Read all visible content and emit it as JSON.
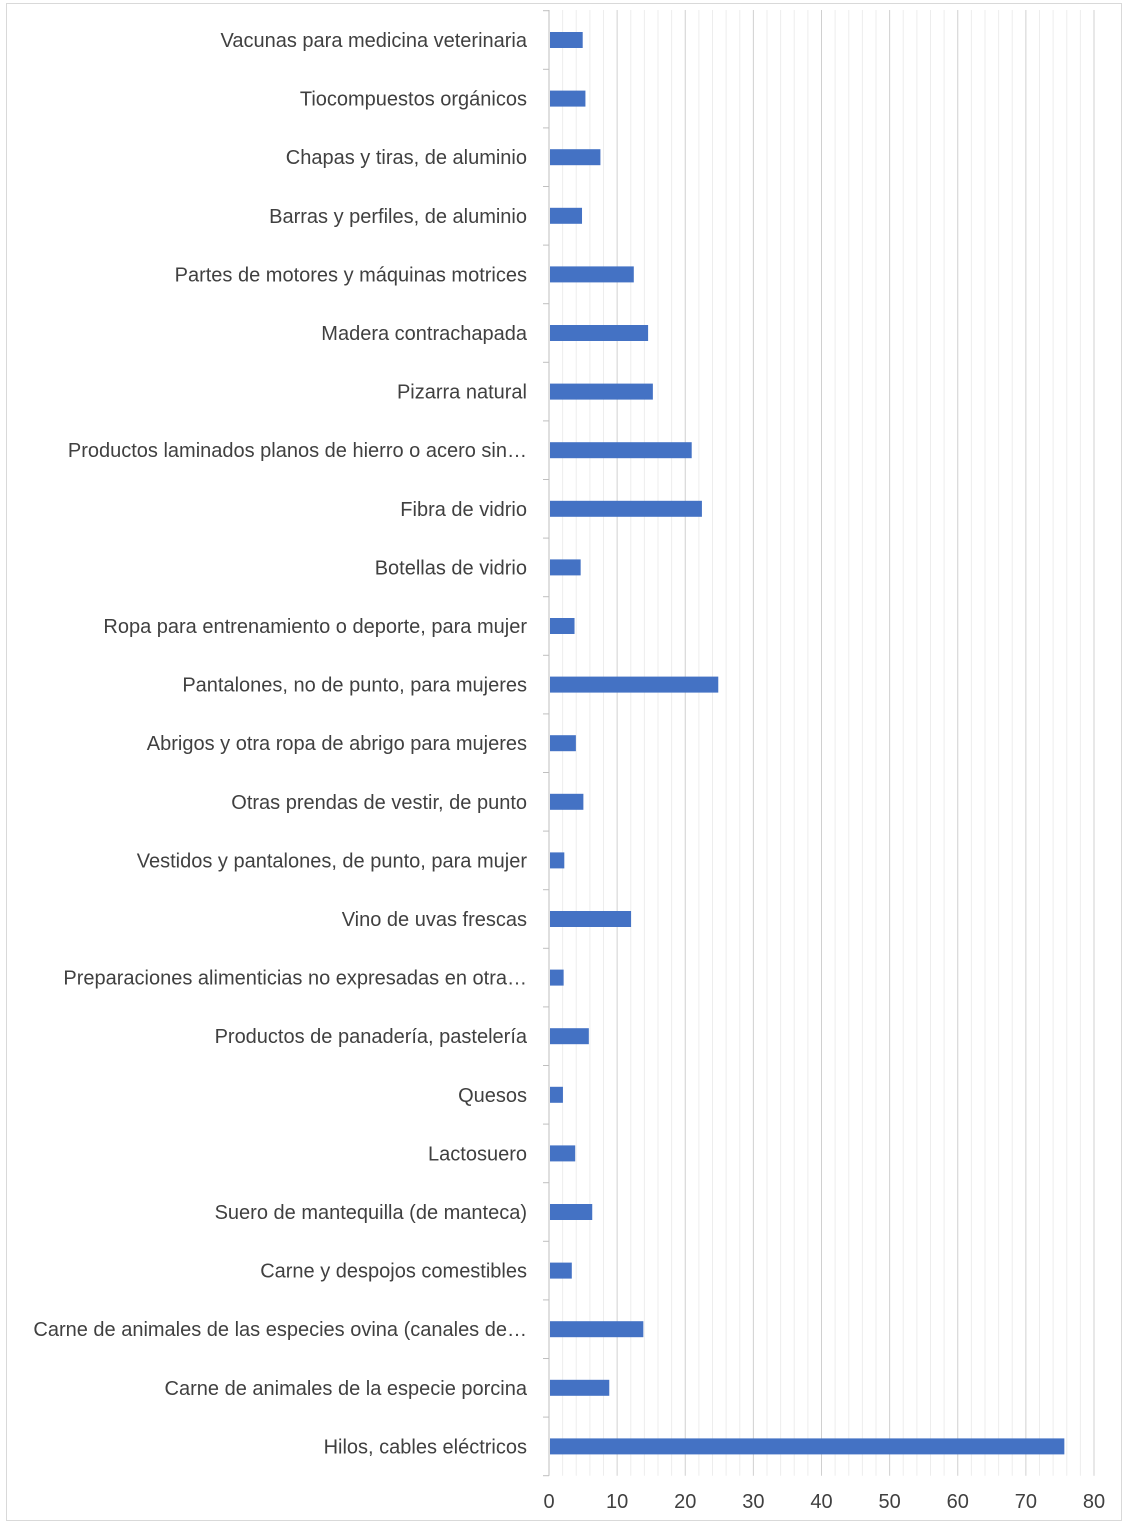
{
  "chart_data": {
    "type": "bar",
    "orientation": "horizontal",
    "title": "",
    "xlabel": "",
    "ylabel": "",
    "xlim": [
      0,
      80
    ],
    "major_tick_step": 10,
    "minor_tick_step": 2,
    "grid": true,
    "legend": "none",
    "bar_color": "#4472c4",
    "categories": [
      "Vacunas para medicina veterinaria",
      "Tiocompuestos orgánicos",
      "Chapas y tiras, de aluminio",
      "Barras y perfiles, de aluminio",
      "Partes de motores y máquinas motrices",
      "Madera contrachapada",
      "Pizarra natural",
      "Productos laminados planos de hierro o acero sin…",
      "Fibra de vidrio",
      "Botellas de vidrio",
      "Ropa para entrenamiento o deporte, para mujer",
      "Pantalones, no de punto, para mujeres",
      "Abrigos y otra ropa de abrigo para mujeres",
      "Otras prendas de vestir, de punto",
      "Vestidos y pantalones, de punto, para mujer",
      "Vino de uvas frescas",
      "Preparaciones alimenticias no expresadas en otra…",
      "Productos de panadería, pastelería",
      "Quesos",
      "Lactosuero",
      "Suero de mantequilla (de manteca)",
      "Carne y despojos comestibles",
      "Carne de animales de las especies ovina (canales de…",
      "Carne de animales de la especie porcina",
      "Hilos, cables eléctricos"
    ],
    "values": [
      4.8,
      5.2,
      7.4,
      4.7,
      12.3,
      14.4,
      15.1,
      20.8,
      22.3,
      4.5,
      3.6,
      24.7,
      3.8,
      4.9,
      2.1,
      11.9,
      2.0,
      5.7,
      1.9,
      3.7,
      6.2,
      3.2,
      13.7,
      8.7,
      75.5
    ],
    "ticks": [
      "0",
      "10",
      "20",
      "30",
      "40",
      "50",
      "60",
      "70",
      "80"
    ]
  }
}
